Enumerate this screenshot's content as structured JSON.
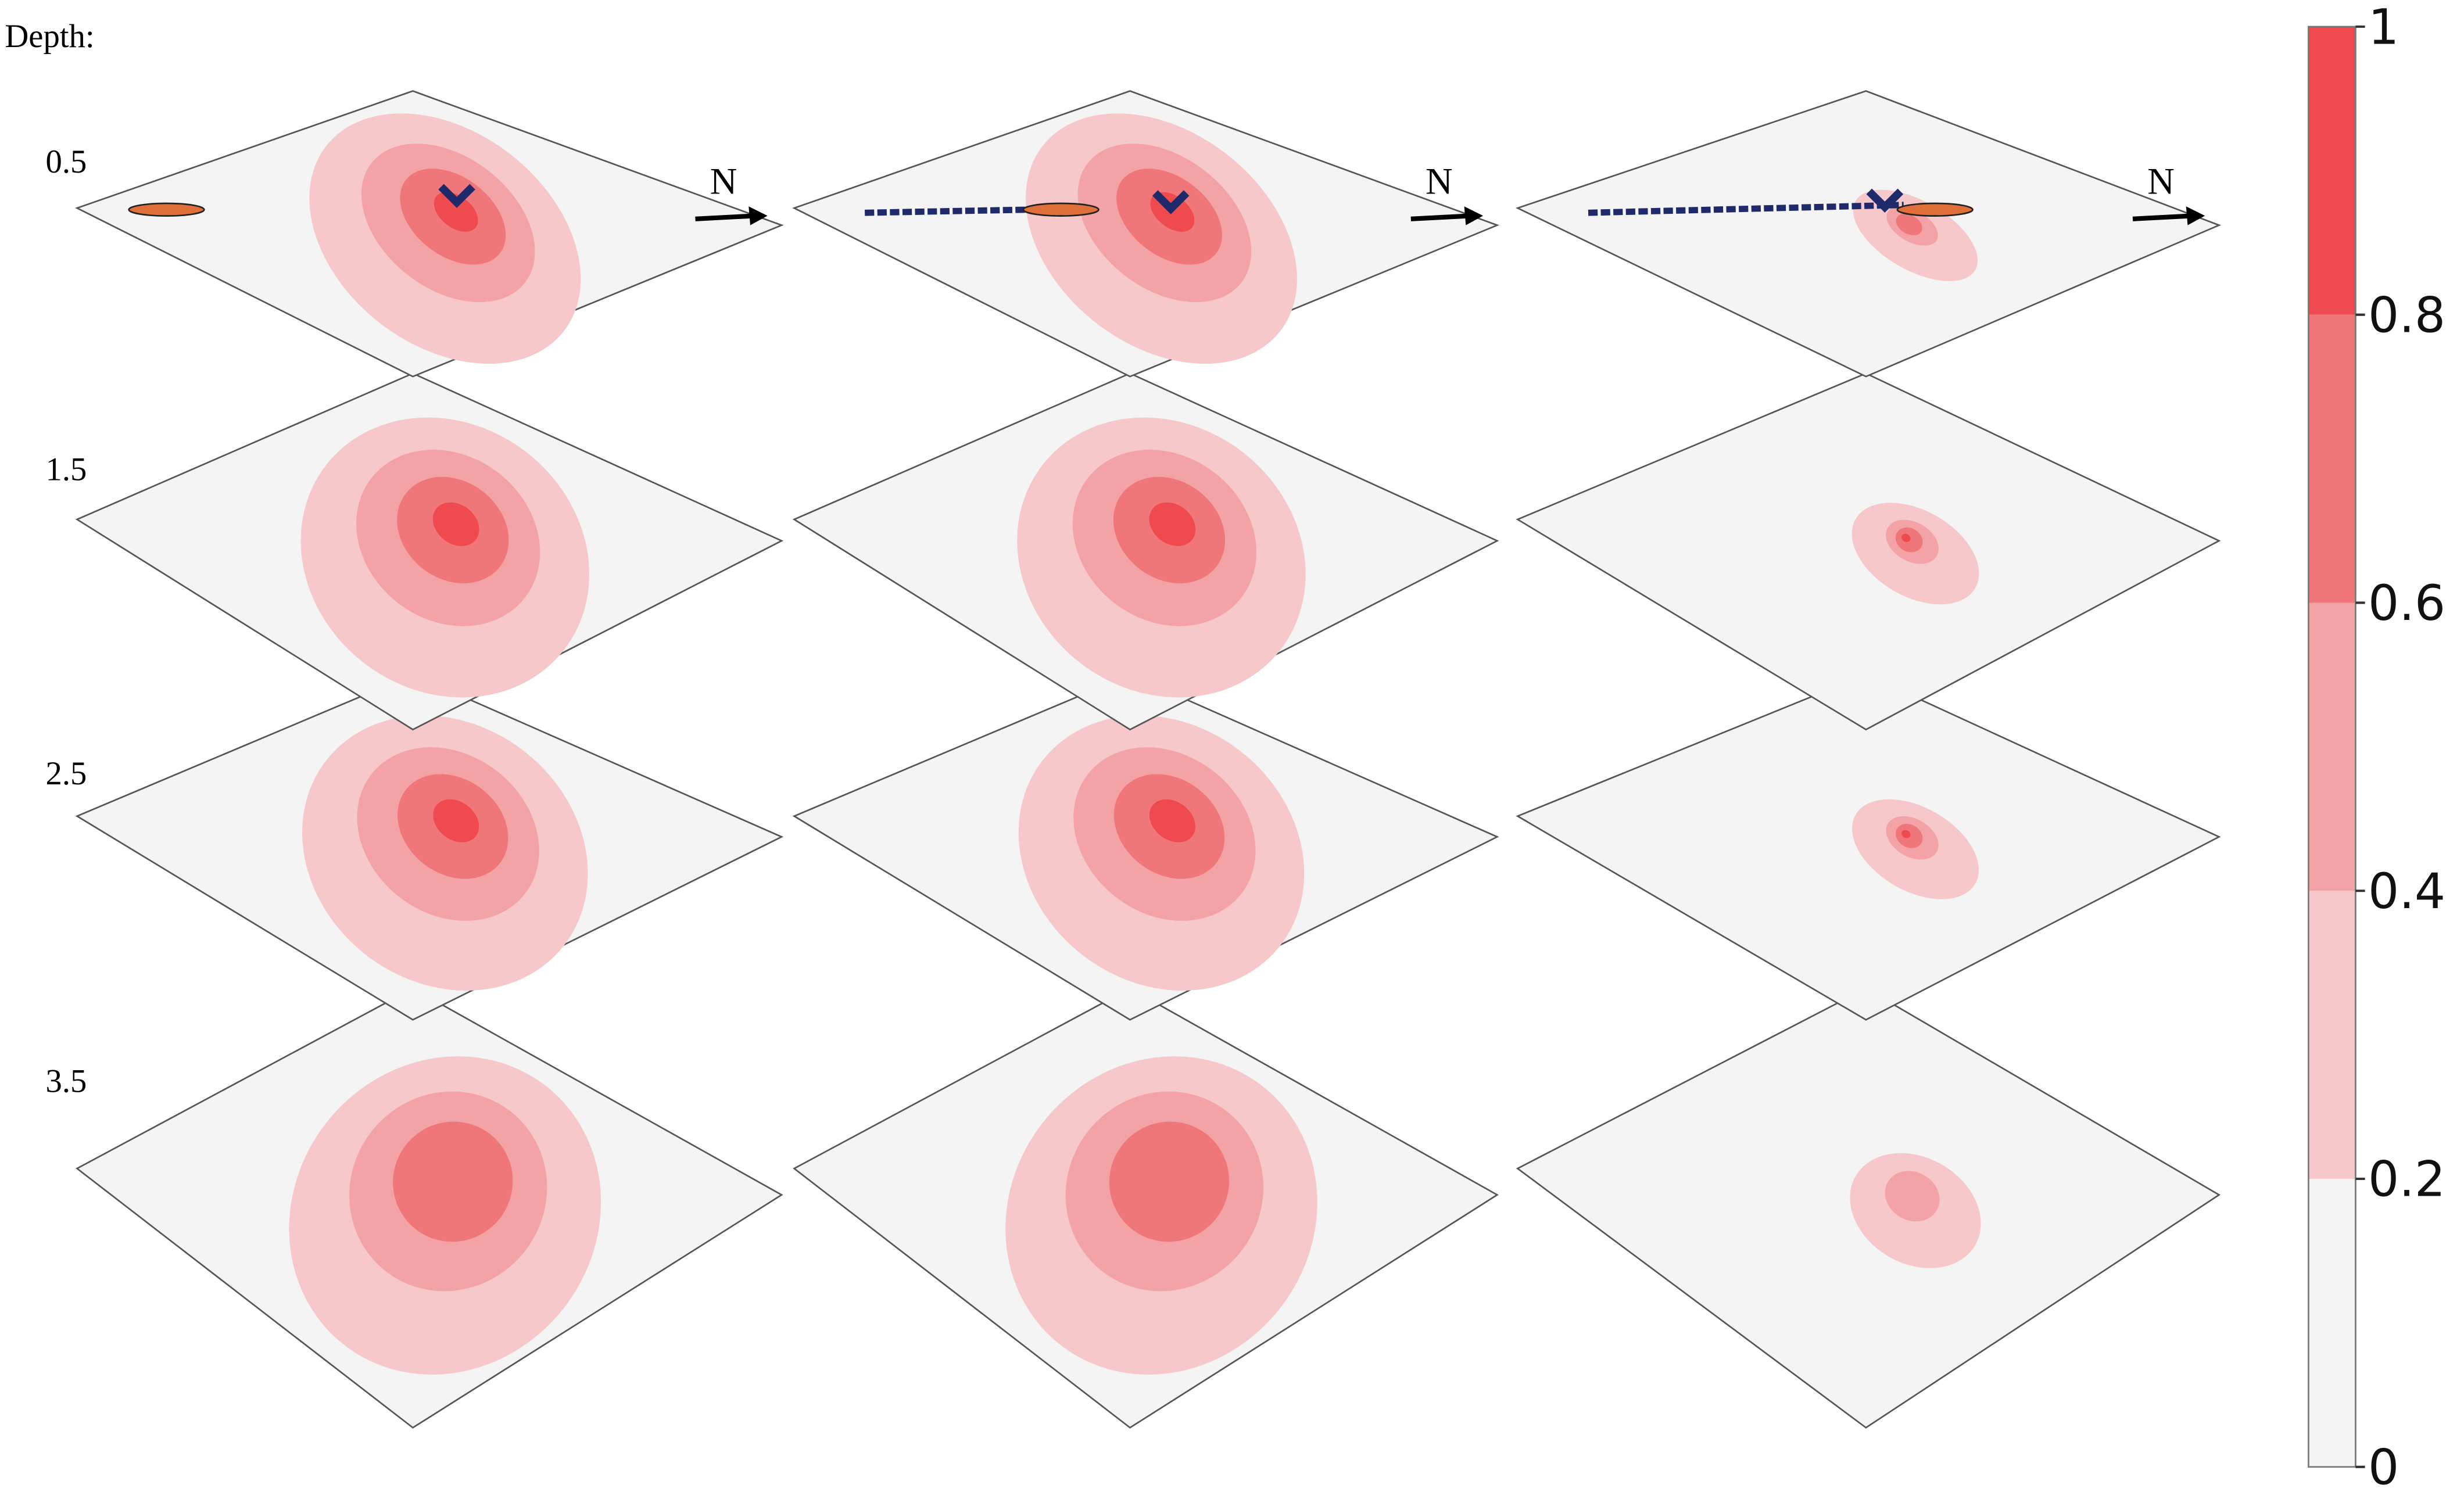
{
  "chart_data": {
    "type": "contour",
    "depth_label": "Depth:",
    "depths": [
      0.5,
      1.5,
      2.5,
      3.5
    ],
    "north_label": "N",
    "colorbar": {
      "ylim": [
        0,
        1
      ],
      "yticks": [
        0,
        0.2,
        0.4,
        0.6,
        0.8,
        1
      ],
      "colors": [
        "#f4f4f4",
        "#f6c8ca",
        "#f3a3a5",
        "#f07779",
        "#ef4a4d"
      ]
    }
  }
}
